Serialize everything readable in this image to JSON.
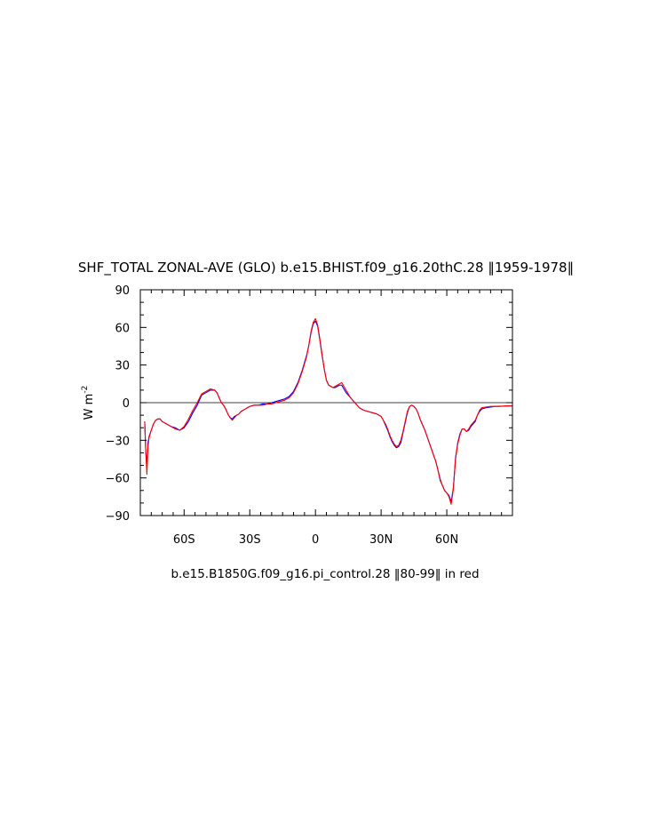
{
  "chart_data": {
    "type": "line",
    "title": "SHF_TOTAL ZONAL-AVE (GLO) b.e15.BHIST.f09_g16.20thC.28 ‖1959-1978‖",
    "subtitle": "b.e15.B1850G.f09_g16.pi_control.28 ‖80-99‖ in red",
    "ylabel": "W m",
    "ylabel_sup": "-2",
    "xlim": [
      -80,
      90
    ],
    "ylim": [
      -90,
      90
    ],
    "x_ticks": [
      {
        "value": -60,
        "label": "60S"
      },
      {
        "value": -30,
        "label": "30S"
      },
      {
        "value": 0,
        "label": "0"
      },
      {
        "value": 30,
        "label": "30N"
      },
      {
        "value": 60,
        "label": "60N"
      }
    ],
    "y_ticks": [
      {
        "value": -90,
        "label": "−90"
      },
      {
        "value": -60,
        "label": "−60"
      },
      {
        "value": -30,
        "label": "−30"
      },
      {
        "value": 0,
        "label": "0"
      },
      {
        "value": 30,
        "label": "30"
      },
      {
        "value": 60,
        "label": "60"
      },
      {
        "value": 90,
        "label": "90"
      }
    ],
    "zero_line": true,
    "series": [
      {
        "color": "#0000ff",
        "points": [
          [
            -78,
            -15
          ],
          [
            -77.5,
            -40
          ],
          [
            -77,
            -48
          ],
          [
            -76.5,
            -32
          ],
          [
            -76,
            -27
          ],
          [
            -75,
            -22
          ],
          [
            -74,
            -17
          ],
          [
            -73,
            -14
          ],
          [
            -72,
            -13
          ],
          [
            -71,
            -13
          ],
          [
            -70,
            -15
          ],
          [
            -68,
            -17
          ],
          [
            -66,
            -19
          ],
          [
            -64,
            -20
          ],
          [
            -62,
            -22
          ],
          [
            -60,
            -20
          ],
          [
            -58,
            -15
          ],
          [
            -56,
            -8
          ],
          [
            -54,
            -2
          ],
          [
            -52,
            6
          ],
          [
            -50,
            8
          ],
          [
            -48,
            10
          ],
          [
            -46,
            10
          ],
          [
            -45,
            8
          ],
          [
            -44,
            4
          ],
          [
            -43,
            0
          ],
          [
            -42,
            -2
          ],
          [
            -41,
            -5
          ],
          [
            -40,
            -9
          ],
          [
            -39,
            -12
          ],
          [
            -38,
            -13
          ],
          [
            -37,
            -11
          ],
          [
            -36,
            -10
          ],
          [
            -35,
            -9
          ],
          [
            -34,
            -7
          ],
          [
            -33,
            -6
          ],
          [
            -32,
            -5
          ],
          [
            -31,
            -4
          ],
          [
            -30,
            -3
          ],
          [
            -28,
            -2
          ],
          [
            -26,
            -2
          ],
          [
            -24,
            -1
          ],
          [
            -22,
            -1
          ],
          [
            -20,
            0
          ],
          [
            -18,
            1
          ],
          [
            -16,
            2
          ],
          [
            -14,
            3
          ],
          [
            -12,
            5
          ],
          [
            -10,
            9
          ],
          [
            -8,
            16
          ],
          [
            -6,
            26
          ],
          [
            -4,
            38
          ],
          [
            -3,
            46
          ],
          [
            -2,
            56
          ],
          [
            -1,
            63
          ],
          [
            0,
            65
          ],
          [
            1,
            61
          ],
          [
            2,
            50
          ],
          [
            3,
            38
          ],
          [
            4,
            27
          ],
          [
            5,
            18
          ],
          [
            6,
            14
          ],
          [
            7,
            13
          ],
          [
            8,
            12
          ],
          [
            9,
            12
          ],
          [
            10,
            13
          ],
          [
            11,
            14
          ],
          [
            12,
            14
          ],
          [
            13,
            11
          ],
          [
            14,
            8
          ],
          [
            15,
            6
          ],
          [
            16,
            4
          ],
          [
            18,
            0
          ],
          [
            19,
            -2
          ],
          [
            20,
            -4
          ],
          [
            22,
            -6
          ],
          [
            24,
            -7
          ],
          [
            26,
            -8
          ],
          [
            28,
            -9
          ],
          [
            30,
            -11
          ],
          [
            31,
            -14
          ],
          [
            32,
            -18
          ],
          [
            33,
            -22
          ],
          [
            34,
            -27
          ],
          [
            35,
            -31
          ],
          [
            36,
            -34
          ],
          [
            37,
            -36
          ],
          [
            38,
            -35
          ],
          [
            39,
            -32
          ],
          [
            40,
            -24
          ],
          [
            41,
            -16
          ],
          [
            42,
            -8
          ],
          [
            43,
            -3
          ],
          [
            44,
            -2
          ],
          [
            45,
            -3
          ],
          [
            46,
            -5
          ],
          [
            47,
            -9
          ],
          [
            48,
            -14
          ],
          [
            49,
            -18
          ],
          [
            50,
            -22
          ],
          [
            51,
            -27
          ],
          [
            52,
            -32
          ],
          [
            53,
            -37
          ],
          [
            54,
            -42
          ],
          [
            55,
            -47
          ],
          [
            56,
            -54
          ],
          [
            57,
            -62
          ],
          [
            58,
            -66
          ],
          [
            59,
            -70
          ],
          [
            60,
            -72
          ],
          [
            61,
            -74
          ],
          [
            62,
            -79
          ],
          [
            63,
            -68
          ],
          [
            64,
            -44
          ],
          [
            65,
            -32
          ],
          [
            66,
            -25
          ],
          [
            67,
            -21
          ],
          [
            68,
            -21
          ],
          [
            69,
            -23
          ],
          [
            70,
            -22
          ],
          [
            71,
            -19
          ],
          [
            72,
            -17
          ],
          [
            73,
            -15
          ],
          [
            74,
            -10
          ],
          [
            75,
            -7
          ],
          [
            76,
            -5
          ],
          [
            78,
            -4
          ],
          [
            80,
            -3.5
          ],
          [
            82,
            -3
          ],
          [
            84,
            -3
          ],
          [
            86,
            -2.8
          ],
          [
            88,
            -2.6
          ],
          [
            90,
            -2.5
          ]
        ]
      },
      {
        "color": "#ff0000",
        "points": [
          [
            -78,
            -15
          ],
          [
            -77.5,
            -40
          ],
          [
            -77,
            -57
          ],
          [
            -76.5,
            -35
          ],
          [
            -76,
            -28
          ],
          [
            -75,
            -22
          ],
          [
            -74,
            -17
          ],
          [
            -73,
            -14
          ],
          [
            -72,
            -13
          ],
          [
            -71,
            -13
          ],
          [
            -70,
            -15
          ],
          [
            -68,
            -17
          ],
          [
            -66,
            -19
          ],
          [
            -64,
            -21
          ],
          [
            -62,
            -22
          ],
          [
            -60,
            -19
          ],
          [
            -58,
            -13
          ],
          [
            -56,
            -6
          ],
          [
            -54,
            0
          ],
          [
            -52,
            7
          ],
          [
            -50,
            9
          ],
          [
            -48,
            11
          ],
          [
            -46,
            10
          ],
          [
            -45,
            8
          ],
          [
            -44,
            4
          ],
          [
            -43,
            0
          ],
          [
            -42,
            -2
          ],
          [
            -41,
            -5
          ],
          [
            -40,
            -9
          ],
          [
            -39,
            -12
          ],
          [
            -38,
            -14
          ],
          [
            -37,
            -12
          ],
          [
            -36,
            -10
          ],
          [
            -35,
            -9
          ],
          [
            -34,
            -7
          ],
          [
            -33,
            -6
          ],
          [
            -32,
            -5
          ],
          [
            -31,
            -4
          ],
          [
            -30,
            -3
          ],
          [
            -28,
            -2
          ],
          [
            -26,
            -2
          ],
          [
            -24,
            -2
          ],
          [
            -22,
            -1
          ],
          [
            -20,
            -1
          ],
          [
            -18,
            0
          ],
          [
            -16,
            1
          ],
          [
            -14,
            2
          ],
          [
            -12,
            4
          ],
          [
            -10,
            8
          ],
          [
            -8,
            15
          ],
          [
            -6,
            25
          ],
          [
            -4,
            37
          ],
          [
            -3,
            46
          ],
          [
            -2,
            57
          ],
          [
            -1,
            64
          ],
          [
            0,
            67
          ],
          [
            1,
            62
          ],
          [
            2,
            51
          ],
          [
            3,
            39
          ],
          [
            4,
            27
          ],
          [
            5,
            18
          ],
          [
            6,
            14
          ],
          [
            7,
            13
          ],
          [
            8,
            12
          ],
          [
            9,
            13
          ],
          [
            10,
            14
          ],
          [
            11,
            15
          ],
          [
            12,
            16
          ],
          [
            13,
            13
          ],
          [
            14,
            10
          ],
          [
            15,
            7
          ],
          [
            16,
            4
          ],
          [
            18,
            0
          ],
          [
            19,
            -2
          ],
          [
            20,
            -4
          ],
          [
            22,
            -6
          ],
          [
            24,
            -7
          ],
          [
            26,
            -8
          ],
          [
            28,
            -9
          ],
          [
            30,
            -11
          ],
          [
            31,
            -14
          ],
          [
            32,
            -17
          ],
          [
            33,
            -21
          ],
          [
            34,
            -26
          ],
          [
            35,
            -30
          ],
          [
            36,
            -33
          ],
          [
            37,
            -35
          ],
          [
            38,
            -34
          ],
          [
            39,
            -30
          ],
          [
            40,
            -23
          ],
          [
            41,
            -15
          ],
          [
            42,
            -7
          ],
          [
            43,
            -3
          ],
          [
            44,
            -2
          ],
          [
            45,
            -3
          ],
          [
            46,
            -5
          ],
          [
            47,
            -9
          ],
          [
            48,
            -14
          ],
          [
            49,
            -18
          ],
          [
            50,
            -22
          ],
          [
            51,
            -27
          ],
          [
            52,
            -32
          ],
          [
            53,
            -37
          ],
          [
            54,
            -42
          ],
          [
            55,
            -47
          ],
          [
            56,
            -54
          ],
          [
            57,
            -61
          ],
          [
            58,
            -66
          ],
          [
            59,
            -70
          ],
          [
            60,
            -72
          ],
          [
            61,
            -75
          ],
          [
            62,
            -81
          ],
          [
            63,
            -69
          ],
          [
            64,
            -45
          ],
          [
            65,
            -33
          ],
          [
            66,
            -26
          ],
          [
            67,
            -21
          ],
          [
            68,
            -21
          ],
          [
            69,
            -23
          ],
          [
            70,
            -21
          ],
          [
            71,
            -18
          ],
          [
            72,
            -16
          ],
          [
            73,
            -14
          ],
          [
            74,
            -10
          ],
          [
            75,
            -6
          ],
          [
            76,
            -4
          ],
          [
            78,
            -3.5
          ],
          [
            80,
            -3
          ],
          [
            82,
            -3
          ],
          [
            84,
            -2.8
          ],
          [
            86,
            -2.7
          ],
          [
            88,
            -2.5
          ],
          [
            90,
            -2.5
          ]
        ]
      }
    ]
  }
}
